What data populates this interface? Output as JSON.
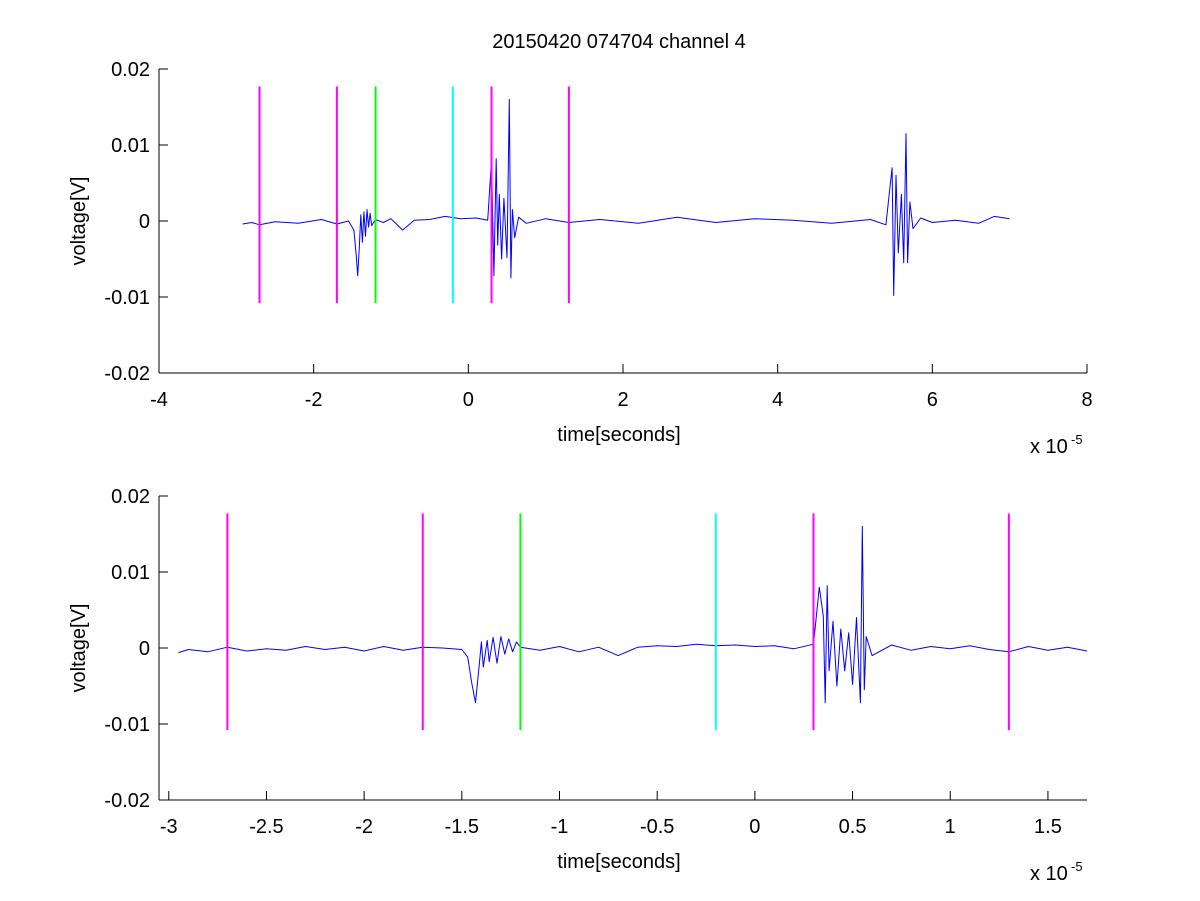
{
  "figure": {
    "background": "#ffffff"
  },
  "chart_data": [
    {
      "type": "line",
      "title": "20150420 074704 channel 4",
      "xlabel": "time[seconds]",
      "ylabel": "voltage[V]",
      "x_exponent_label": "x 10",
      "x_exponent": "-5",
      "xlim": [
        -4,
        8
      ],
      "ylim": [
        -0.02,
        0.02
      ],
      "xticks": [
        -4,
        -2,
        0,
        2,
        4,
        6,
        8
      ],
      "xtick_labels": [
        "-4",
        "-2",
        "0",
        "2",
        "4",
        "6",
        "8"
      ],
      "yticks": [
        -0.02,
        -0.01,
        0,
        0.01,
        0.02
      ],
      "ytick_labels": [
        "-0.02",
        "-0.01",
        "0",
        "0.01",
        "0.02"
      ],
      "grid": false,
      "series": [
        {
          "color": "#0000ff",
          "x": [
            -2.92,
            -2.8,
            -2.7,
            -2.5,
            -2.2,
            -1.9,
            -1.7,
            -1.55,
            -1.48,
            -1.45,
            -1.43,
            -1.41,
            -1.39,
            -1.37,
            -1.35,
            -1.33,
            -1.31,
            -1.29,
            -1.27,
            -1.25,
            -1.2,
            -1.1,
            -1.0,
            -0.85,
            -0.7,
            -0.5,
            -0.3,
            -0.1,
            0.1,
            0.25,
            0.3,
            0.33,
            0.36,
            0.38,
            0.4,
            0.43,
            0.46,
            0.5,
            0.53,
            0.55,
            0.57,
            0.6,
            0.65,
            0.75,
            1.0,
            1.3,
            1.7,
            2.2,
            2.7,
            3.2,
            3.7,
            4.2,
            4.7,
            5.2,
            5.4,
            5.48,
            5.5,
            5.53,
            5.56,
            5.6,
            5.63,
            5.66,
            5.68,
            5.71,
            5.75,
            5.85,
            6.0,
            6.3,
            6.6,
            6.8,
            7.0
          ],
          "y": [
            -0.0004,
            -0.0002,
            -0.0005,
            -0.0001,
            -0.0003,
            0.0002,
            -0.0004,
            0.0,
            -0.0012,
            -0.0045,
            -0.0072,
            -0.0035,
            0.0008,
            -0.0028,
            0.0012,
            -0.002,
            0.0015,
            -0.0008,
            0.001,
            -0.0006,
            0.0002,
            -0.0002,
            0.0003,
            -0.0012,
            0.0001,
            0.0002,
            0.0006,
            0.0003,
            0.0004,
            0.0001,
            0.008,
            -0.0072,
            0.0082,
            -0.0032,
            0.0035,
            -0.005,
            0.003,
            -0.0048,
            0.016,
            -0.0075,
            0.0015,
            -0.0022,
            0.0005,
            -0.0003,
            0.0003,
            -0.0002,
            0.0002,
            -0.0003,
            0.0005,
            -0.0002,
            0.0003,
            0.0001,
            -0.0003,
            0.0002,
            -0.0005,
            0.007,
            -0.0098,
            0.006,
            -0.0042,
            0.0035,
            -0.0055,
            0.0115,
            -0.0055,
            0.0025,
            -0.001,
            0.0004,
            -0.0002,
            0.0001,
            -0.0003,
            0.0006,
            0.0003
          ]
        }
      ],
      "markers": [
        {
          "x": -2.7,
          "color": "#ff00ff",
          "y_range": [
            -0.0108,
            0.0177
          ]
        },
        {
          "x": -1.7,
          "color": "#ff00ff",
          "y_range": [
            -0.0108,
            0.0177
          ]
        },
        {
          "x": -1.2,
          "color": "#00ff00",
          "y_range": [
            -0.0108,
            0.0177
          ]
        },
        {
          "x": -0.2,
          "color": "#00ffff",
          "y_range": [
            -0.0108,
            0.0177
          ]
        },
        {
          "x": 0.3,
          "color": "#ff00ff",
          "y_range": [
            -0.0108,
            0.0177
          ]
        },
        {
          "x": 1.3,
          "color": "#ff00ff",
          "y_range": [
            -0.0108,
            0.0177
          ]
        }
      ]
    },
    {
      "type": "line",
      "title": "",
      "xlabel": "time[seconds]",
      "ylabel": "voltage[V]",
      "x_exponent_label": "x 10",
      "x_exponent": "-5",
      "xlim": [
        -3.05,
        1.7
      ],
      "ylim": [
        -0.02,
        0.02
      ],
      "xticks": [
        -3,
        -2.5,
        -2,
        -1.5,
        -1,
        -0.5,
        0,
        0.5,
        1,
        1.5
      ],
      "xtick_labels": [
        "-3",
        "-2.5",
        "-2",
        "-1.5",
        "-1",
        "-0.5",
        "0",
        "0.5",
        "1",
        "1.5"
      ],
      "yticks": [
        -0.02,
        -0.01,
        0,
        0.01,
        0.02
      ],
      "ytick_labels": [
        "-0.02",
        "-0.01",
        "0",
        "0.01",
        "0.02"
      ],
      "grid": false,
      "series": [
        {
          "color": "#0000ff",
          "x": [
            -2.95,
            -2.9,
            -2.8,
            -2.7,
            -2.6,
            -2.5,
            -2.4,
            -2.3,
            -2.2,
            -2.1,
            -2.0,
            -1.9,
            -1.8,
            -1.7,
            -1.6,
            -1.5,
            -1.47,
            -1.45,
            -1.43,
            -1.41,
            -1.4,
            -1.39,
            -1.37,
            -1.36,
            -1.34,
            -1.32,
            -1.3,
            -1.28,
            -1.26,
            -1.24,
            -1.22,
            -1.2,
            -1.1,
            -1.0,
            -0.9,
            -0.8,
            -0.7,
            -0.6,
            -0.5,
            -0.4,
            -0.3,
            -0.2,
            -0.1,
            0.0,
            0.1,
            0.2,
            0.3,
            0.33,
            0.35,
            0.36,
            0.37,
            0.38,
            0.4,
            0.42,
            0.44,
            0.46,
            0.48,
            0.5,
            0.52,
            0.54,
            0.55,
            0.56,
            0.57,
            0.6,
            0.7,
            0.8,
            0.9,
            1.0,
            1.1,
            1.2,
            1.3,
            1.4,
            1.5,
            1.6,
            1.7
          ],
          "y": [
            -0.0006,
            -0.0002,
            -0.0005,
            0.0001,
            -0.0004,
            -0.0001,
            -0.0003,
            0.0002,
            -0.0002,
            0.0001,
            -0.0004,
            0.0002,
            -0.0003,
            0.0001,
            0.0,
            -0.0002,
            -0.0012,
            -0.0045,
            -0.0072,
            -0.002,
            0.0008,
            -0.0025,
            0.001,
            -0.0018,
            0.0014,
            -0.002,
            0.0015,
            -0.0008,
            0.0012,
            -0.0005,
            0.0008,
            0.0001,
            -0.0003,
            0.0002,
            -0.0005,
            0.0001,
            -0.001,
            0.0001,
            0.0003,
            0.0002,
            0.0005,
            0.0003,
            0.0004,
            0.0002,
            0.0003,
            -0.0001,
            0.0005,
            0.008,
            0.0042,
            -0.0072,
            0.0082,
            -0.003,
            0.0035,
            -0.005,
            0.0025,
            -0.003,
            0.002,
            -0.0048,
            0.004,
            -0.0072,
            0.016,
            -0.0055,
            0.0015,
            -0.001,
            0.0004,
            -0.0003,
            0.0002,
            -0.0001,
            0.0003,
            -0.0002,
            -0.0005,
            0.0002,
            -0.0003,
            0.0001,
            -0.0004
          ]
        }
      ],
      "markers": [
        {
          "x": -2.7,
          "color": "#ff00ff",
          "y_range": [
            -0.0108,
            0.0177
          ]
        },
        {
          "x": -1.7,
          "color": "#ff00ff",
          "y_range": [
            -0.0108,
            0.0177
          ]
        },
        {
          "x": -1.2,
          "color": "#00ff00",
          "y_range": [
            -0.0108,
            0.0177
          ]
        },
        {
          "x": -0.2,
          "color": "#00ffff",
          "y_range": [
            -0.0108,
            0.0177
          ]
        },
        {
          "x": 0.3,
          "color": "#ff00ff",
          "y_range": [
            -0.0108,
            0.0177
          ]
        },
        {
          "x": 1.3,
          "color": "#ff00ff",
          "y_range": [
            -0.0108,
            0.0177
          ]
        }
      ]
    }
  ]
}
